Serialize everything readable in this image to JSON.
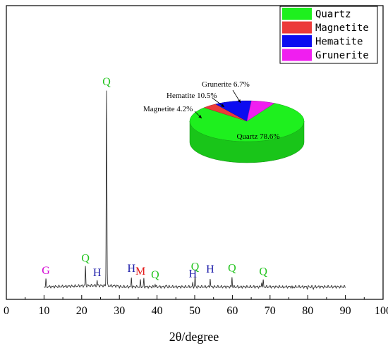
{
  "chart_data": [
    {
      "type": "line",
      "title": "",
      "xlabel": "2θ/degree",
      "ylabel": "",
      "xlim": [
        0,
        100
      ],
      "x_ticks": [
        "0",
        "10",
        "20",
        "30",
        "40",
        "50",
        "60",
        "70",
        "80",
        "90",
        "100"
      ],
      "y_ticks_visible": false,
      "grid": false,
      "peaks": [
        {
          "x": 10.5,
          "y": 0.055,
          "label": "G",
          "color": "#d400d4"
        },
        {
          "x": 21.0,
          "y": 0.115,
          "label": "Q",
          "color": "#22c41e"
        },
        {
          "x": 24.1,
          "y": 0.045,
          "label": "H",
          "color": "#1a1aa8"
        },
        {
          "x": 26.6,
          "y": 0.98,
          "label": "Q",
          "color": "#22c41e"
        },
        {
          "x": 33.2,
          "y": 0.065,
          "label": "H",
          "color": "#1a1aa8"
        },
        {
          "x": 35.6,
          "y": 0.052,
          "label": "M",
          "color": "#e31a1a"
        },
        {
          "x": 36.5,
          "y": 0.058,
          "label": "",
          "color": ""
        },
        {
          "x": 39.5,
          "y": 0.035,
          "label": "Q",
          "color": "#22c41e"
        },
        {
          "x": 40.3,
          "y": 0.02,
          "label": "",
          "color": ""
        },
        {
          "x": 42.5,
          "y": 0.028,
          "label": "",
          "color": ""
        },
        {
          "x": 45.8,
          "y": 0.02,
          "label": "",
          "color": ""
        },
        {
          "x": 49.5,
          "y": 0.04,
          "label": "H",
          "color": "#1a1aa8"
        },
        {
          "x": 50.1,
          "y": 0.075,
          "label": "Q",
          "color": "#22c41e"
        },
        {
          "x": 54.1,
          "y": 0.062,
          "label": "H",
          "color": "#1a1aa8"
        },
        {
          "x": 55.0,
          "y": 0.02,
          "label": "",
          "color": ""
        },
        {
          "x": 59.9,
          "y": 0.068,
          "label": "Q",
          "color": "#22c41e"
        },
        {
          "x": 62.0,
          "y": 0.015,
          "label": "",
          "color": ""
        },
        {
          "x": 64.0,
          "y": 0.018,
          "label": "",
          "color": ""
        },
        {
          "x": 67.8,
          "y": 0.045,
          "label": "",
          "color": ""
        },
        {
          "x": 68.2,
          "y": 0.05,
          "label": "Q",
          "color": "#22c41e"
        },
        {
          "x": 73.5,
          "y": 0.012,
          "label": "",
          "color": ""
        },
        {
          "x": 76.0,
          "y": 0.012,
          "label": "",
          "color": ""
        },
        {
          "x": 79.9,
          "y": 0.015,
          "label": "",
          "color": ""
        },
        {
          "x": 81.5,
          "y": 0.01,
          "label": "",
          "color": ""
        }
      ],
      "baseline": 0.02,
      "x_start": 10,
      "x_end": 90
    },
    {
      "type": "pie",
      "title": "",
      "slices": [
        {
          "label": "Quartz",
          "value": 78.6,
          "text": "Quartz 78.6%",
          "color": "#1ef01e"
        },
        {
          "label": "Magnetite",
          "value": 4.2,
          "text": "Magnetite 4.2%",
          "color": "#ec3a3a"
        },
        {
          "label": "Hematite",
          "value": 10.5,
          "text": "Hematite 10.5%",
          "color": "#0c0cf0"
        },
        {
          "label": "Grunerite",
          "value": 6.7,
          "text": "Grunerite 6.7%",
          "color": "#f01ef0"
        }
      ],
      "legend": {
        "position": "top-right",
        "entries": [
          {
            "label": "Quartz",
            "color": "#1ef01e"
          },
          {
            "label": "Magnetite",
            "color": "#ec3a3a"
          },
          {
            "label": "Hematite",
            "color": "#0c0cf0"
          },
          {
            "label": "Grunerite",
            "color": "#f01ef0"
          }
        ]
      }
    }
  ]
}
